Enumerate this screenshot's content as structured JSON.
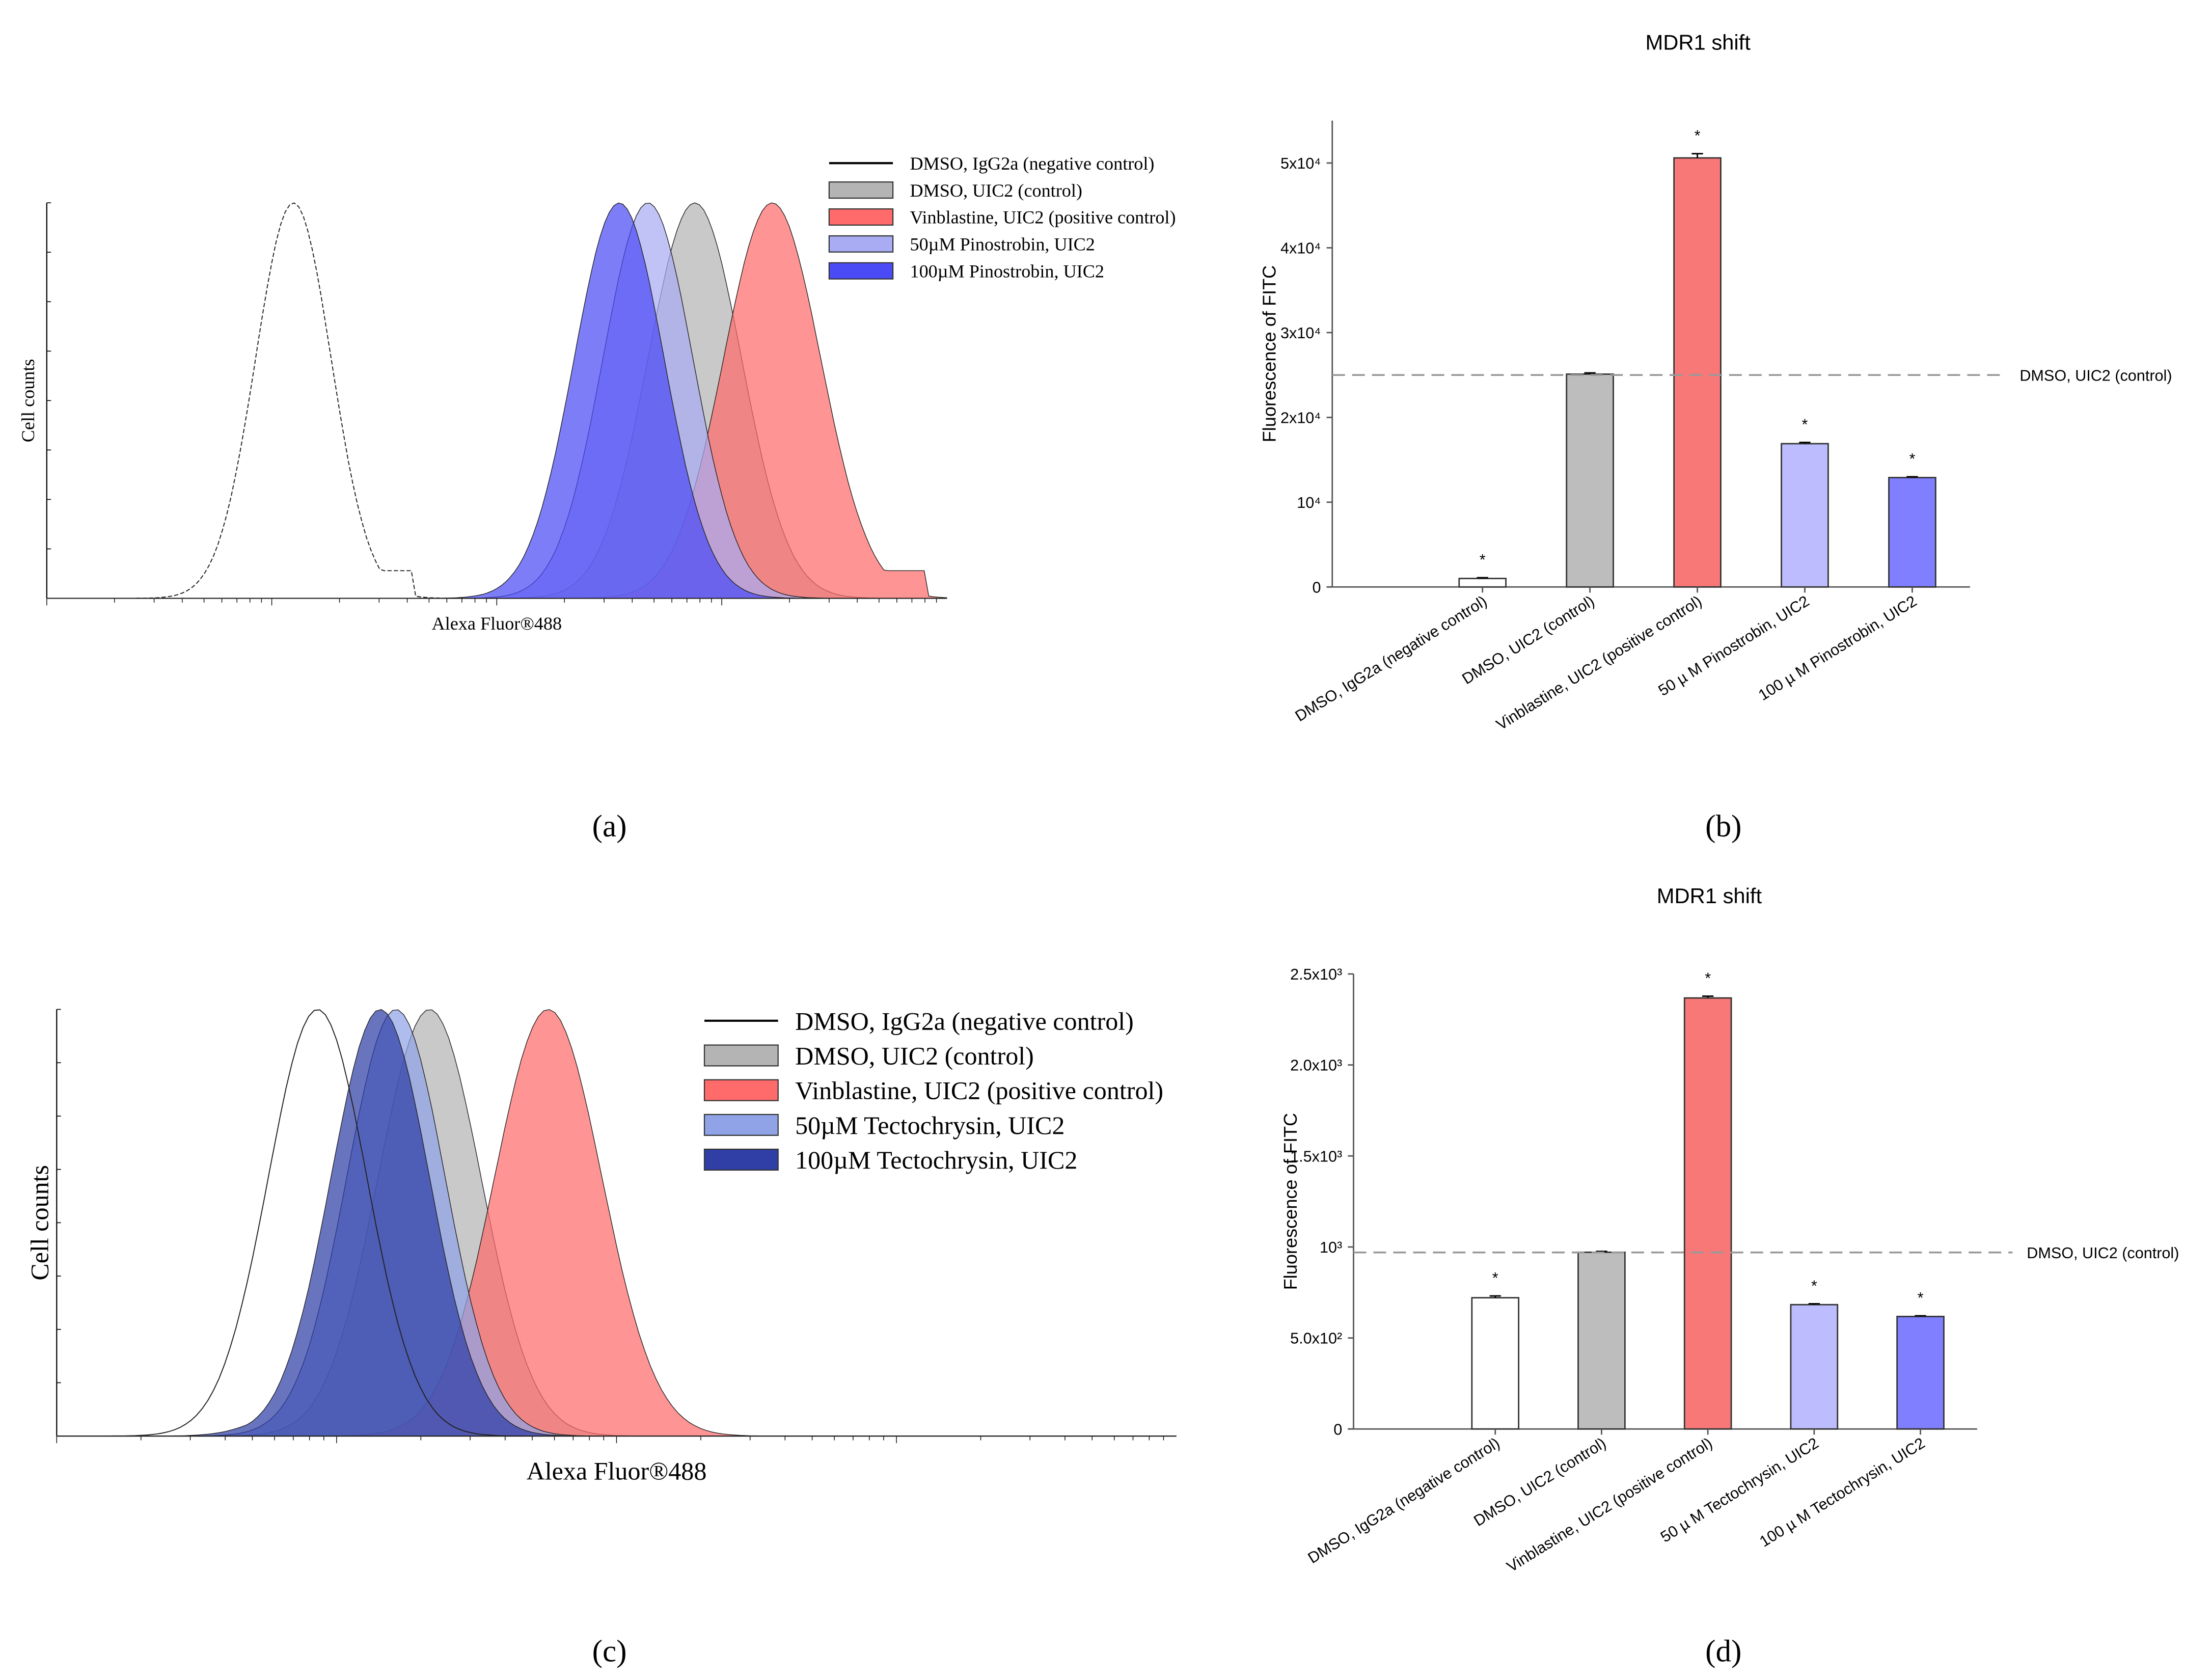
{
  "chart_data": [
    {
      "panel": "(a)",
      "type": "area",
      "subtype": "flow-cytometry-histogram",
      "xlabel": "Alexa Fluor®488",
      "ylabel": "Cell counts",
      "xlim": [
        0,
        100
      ],
      "ylim": [
        0,
        1
      ],
      "legend_position": "top-right",
      "series": [
        {
          "name": "DMSO, IgG2a (negative control)",
          "color": "#ffffff",
          "peak": 27.4,
          "sigma": 4.2,
          "height": 1.0,
          "tail": 0.07
        },
        {
          "name": "DMSO, UIC2 (control)",
          "color": "#b4b4b4",
          "peak": 72.0,
          "sigma": 5.2,
          "height": 1.0
        },
        {
          "name": "Vinblastine, UIC2 (positive control)",
          "color": "#ff6b6b",
          "peak": 80.6,
          "sigma": 5.4,
          "height": 1.0,
          "tail": 0.07
        },
        {
          "name": "50µM Pinostrobin, UIC2",
          "color": "#a9acf2",
          "peak": 66.8,
          "sigma": 5.0,
          "height": 1.0
        },
        {
          "name": "100µM Pinostrobin, UIC2",
          "color": "#4b4bf5",
          "peak": 63.6,
          "sigma": 5.0,
          "height": 1.0,
          "bump_peak": 57.5,
          "bump_height": 0.13
        }
      ]
    },
    {
      "panel": "(b)",
      "type": "bar",
      "title": "MDR1 shift",
      "ylabel": "Fluorescence of FITC",
      "ylim": [
        0,
        55000
      ],
      "yticks": [
        0,
        10000,
        20000,
        30000,
        40000,
        50000
      ],
      "ytick_labels": [
        "0",
        "10⁴",
        "2x10⁴",
        "3x10⁴",
        "4x10⁴",
        "5x10⁴"
      ],
      "categories": [
        "DMSO, IgG2a (negative control)",
        "DMSO, UIC2 (control)",
        "Vinblastine, UIC2 (positive control)",
        "50 µ M Pinostrobin, UIC2",
        "100 µ M Pinostrobin, UIC2"
      ],
      "values": [
        1000,
        25100,
        50600,
        16900,
        12900
      ],
      "errors": [
        100,
        150,
        500,
        150,
        100
      ],
      "significance": [
        "*",
        "",
        "*",
        "*",
        "*"
      ],
      "colors": [
        "#ffffff",
        "#bdbdbd",
        "#f87878",
        "#bcbcff",
        "#7f7fff"
      ],
      "reference_line": {
        "value": 25000,
        "label": "DMSO, UIC2 (control)"
      }
    },
    {
      "panel": "(c)",
      "type": "area",
      "subtype": "flow-cytometry-histogram",
      "xlabel": "Alexa Fluor®488",
      "ylabel": "Cell counts",
      "xlim": [
        0,
        100
      ],
      "ylim": [
        0,
        1
      ],
      "legend_position": "top-right",
      "series": [
        {
          "name": "DMSO, IgG2a (negative control)",
          "color": "#ffffff",
          "peak": 23.3,
          "sigma": 4.4,
          "height": 1.0
        },
        {
          "name": "DMSO, UIC2 (control)",
          "color": "#b4b4b4",
          "peak": 33.3,
          "sigma": 4.6,
          "height": 1.0
        },
        {
          "name": "Vinblastine, UIC2 (positive control)",
          "color": "#ff6b6b",
          "peak": 43.9,
          "sigma": 4.8,
          "height": 1.0
        },
        {
          "name": "50µM Tectochrysin, UIC2",
          "color": "#8fa3e6",
          "peak": 30.3,
          "sigma": 4.4,
          "height": 1.0
        },
        {
          "name": "100µM Tectochrysin, UIC2",
          "color": "#2f3fa6",
          "peak": 28.9,
          "sigma": 4.4,
          "height": 1.0,
          "bump_peak": 23.5,
          "bump_height": 0.1
        }
      ]
    },
    {
      "panel": "(d)",
      "type": "bar",
      "title": "MDR1 shift",
      "ylabel": "Fluorescence of FITC",
      "ylim": [
        0,
        2500
      ],
      "yticks": [
        0,
        500,
        1000,
        1500,
        2000,
        2500
      ],
      "ytick_labels": [
        "0",
        "5.0x10²",
        "10³",
        "1.5x10³",
        "2.0x10³",
        "2.5x10³"
      ],
      "categories": [
        "DMSO, IgG2a (negative control)",
        "DMSO, UIC2 (control)",
        "Vinblastine, UIC2 (positive control)",
        "50 µ M Tectochrysin, UIC2",
        "100 µ M Tectochrysin, UIC2"
      ],
      "values": [
        721,
        971,
        2368,
        683,
        618
      ],
      "errors": [
        10,
        5,
        10,
        5,
        4
      ],
      "significance": [
        "*",
        "",
        "*",
        "*",
        "*"
      ],
      "colors": [
        "#ffffff",
        "#bdbdbd",
        "#f87878",
        "#bcbcff",
        "#7f7fff"
      ],
      "reference_line": {
        "value": 970,
        "label": "DMSO, UIC2 (control)"
      }
    }
  ],
  "panel_labels": [
    "(a)",
    "(b)",
    "(c)",
    "(d)"
  ]
}
